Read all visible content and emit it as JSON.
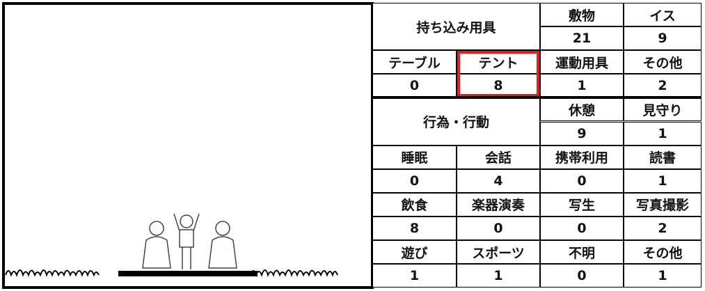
{
  "table": {
    "groups": [
      {
        "title": "持ち込み用具",
        "items": [
          {
            "label": "敷物",
            "count": 21
          },
          {
            "label": "イス",
            "count": 9
          },
          {
            "label": "テーブル",
            "count": 0
          },
          {
            "label": "テント",
            "count": 8,
            "highlighted": true
          },
          {
            "label": "運動用具",
            "count": 1
          },
          {
            "label": "その他",
            "count": 2
          }
        ]
      },
      {
        "title": "行為・行動",
        "items": [
          {
            "label": "休憩",
            "count": 9
          },
          {
            "label": "見守り",
            "count": 1
          },
          {
            "label": "睡眠",
            "count": 0
          },
          {
            "label": "会話",
            "count": 4
          },
          {
            "label": "携帯利用",
            "count": 0
          },
          {
            "label": "読書",
            "count": 1
          },
          {
            "label": "飲食",
            "count": 8
          },
          {
            "label": "楽器演奏",
            "count": 0
          },
          {
            "label": "写生",
            "count": 0
          },
          {
            "label": "写真撮影",
            "count": 2
          },
          {
            "label": "遊び",
            "count": 1
          },
          {
            "label": "スポーツ",
            "count": 1
          },
          {
            "label": "不明",
            "count": 0
          },
          {
            "label": "その他",
            "count": 1
          }
        ]
      }
    ]
  }
}
